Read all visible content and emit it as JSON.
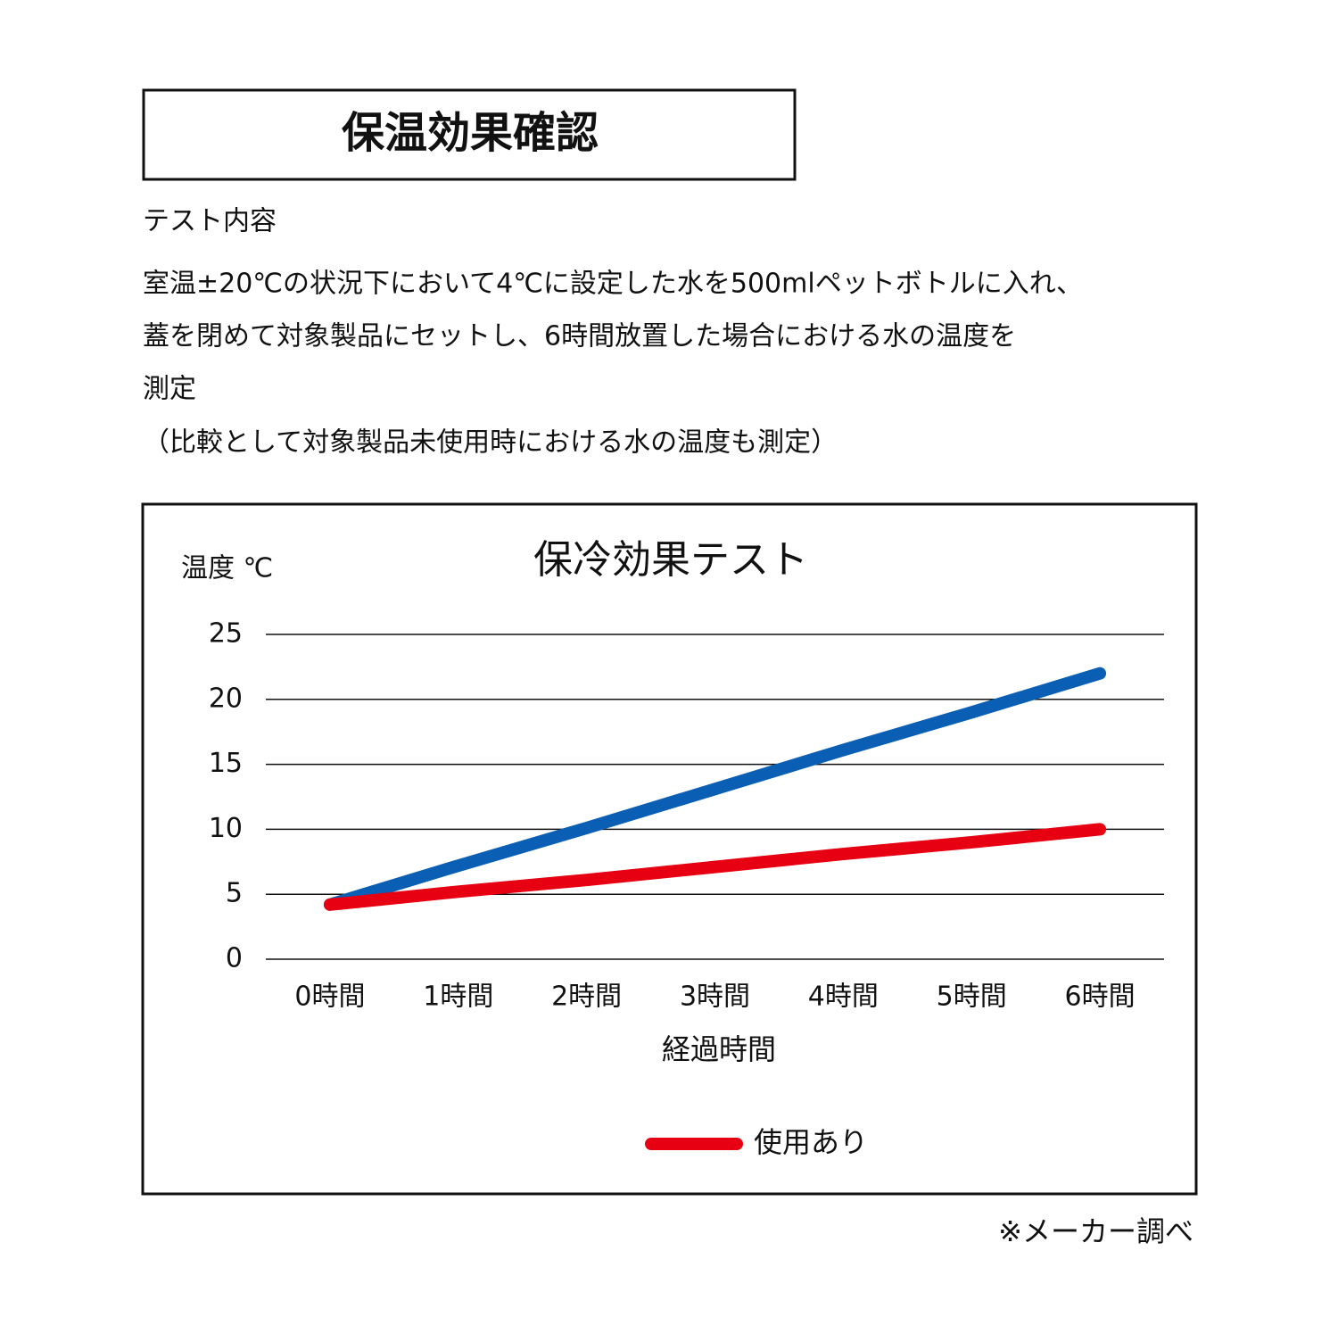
{
  "header": {
    "title": "保温効果確認"
  },
  "description": {
    "heading": "テスト内容",
    "lines": [
      "室温±20℃の状況下において4℃に設定した水を500mlペットボトルに入れ、",
      "蓋を閉めて対象製品にセットし、6時間放置した場合における水の温度を",
      "測定",
      "（比較として対象製品未使用時における水の温度も測定）"
    ]
  },
  "chart_data": {
    "type": "line",
    "title": "保冷効果テスト",
    "y_label": "温度 ℃",
    "x_label": "経過時間",
    "categories": [
      "0時間",
      "1時間",
      "2時間",
      "3時間",
      "4時間",
      "5時間",
      "6時間"
    ],
    "series": [
      {
        "color": "#0a5fb4",
        "values": [
          4.2,
          7.2,
          10.1,
          13.1,
          16.1,
          19.0,
          22.0
        ]
      },
      {
        "name": "使用あり",
        "color": "#e60012",
        "values": [
          4.2,
          5.2,
          6.1,
          7.1,
          8.1,
          9.0,
          10.0
        ]
      }
    ],
    "ylim": [
      0,
      25
    ],
    "yticks": [
      0,
      5,
      10,
      15,
      20,
      25
    ],
    "grid": true,
    "legend": "bottom"
  },
  "footnote": "※メーカー調べ"
}
